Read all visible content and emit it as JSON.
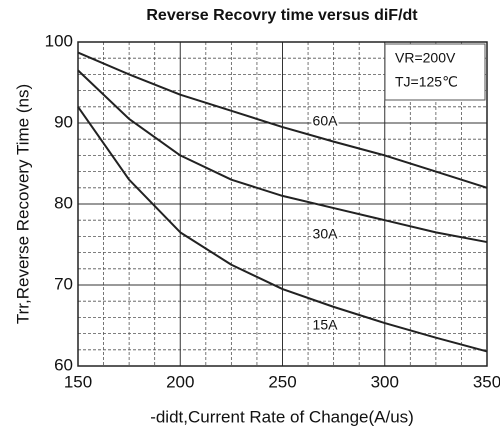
{
  "chart_data": {
    "type": "line",
    "title": "Reverse Recovry time versus diF/dt",
    "xlabel": "-didt,Current Rate of Change(A/us)",
    "ylabel": "Trr,Reverse Recovery Time (ns)",
    "annotations": [
      "VR=200V",
      "TJ=125℃"
    ],
    "x": [
      150,
      175,
      200,
      225,
      250,
      275,
      300,
      325,
      350
    ],
    "series": [
      {
        "name": "60A",
        "color": "#222222",
        "values": [
          98.7,
          96,
          93.5,
          91.5,
          89.5,
          87.7,
          86,
          84,
          82
        ]
      },
      {
        "name": "30A",
        "color": "#222222",
        "values": [
          96.5,
          90.5,
          86,
          83,
          81,
          79.5,
          78,
          76.5,
          75.3
        ]
      },
      {
        "name": "15A",
        "color": "#222222",
        "values": [
          92,
          83,
          76.5,
          72.5,
          69.5,
          67.3,
          65.3,
          63.5,
          61.8
        ]
      }
    ],
    "xlim": [
      150,
      350
    ],
    "xticks": [
      150,
      200,
      250,
      300,
      350
    ],
    "ylim": [
      60,
      100
    ],
    "yticks": [
      60,
      70,
      80,
      90,
      100
    ],
    "grid": true
  }
}
